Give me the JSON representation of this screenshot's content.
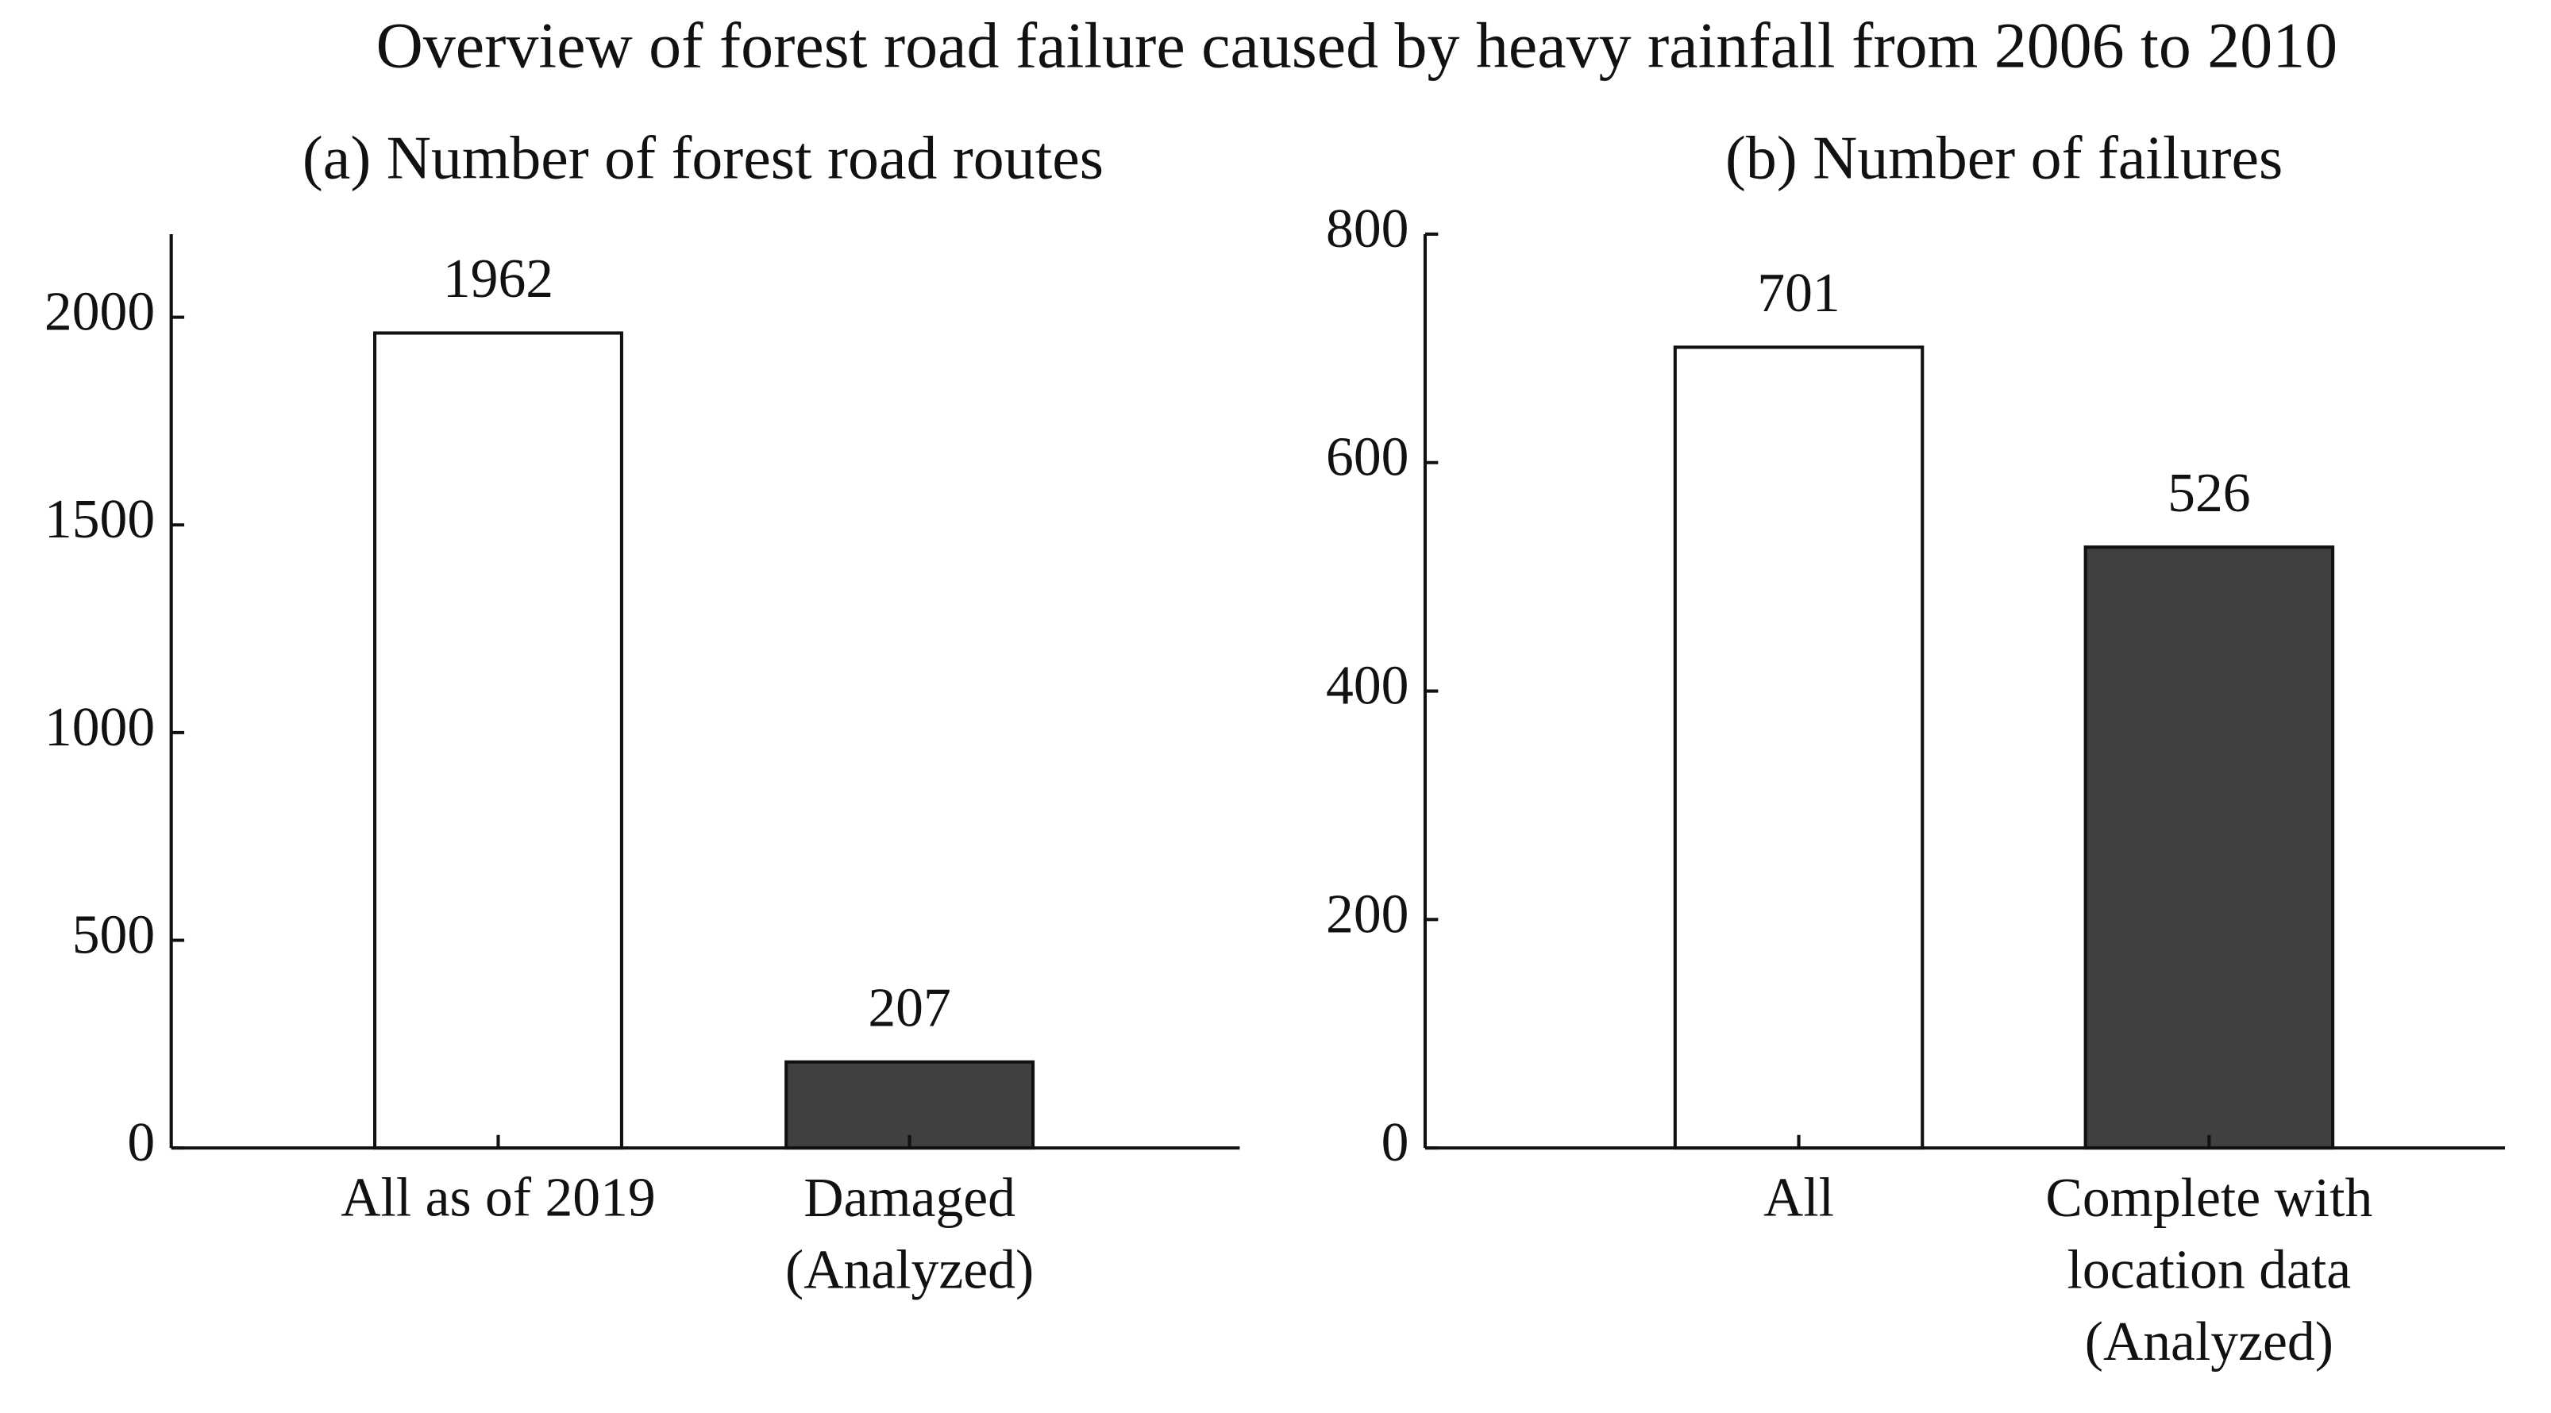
{
  "title": "Overview of forest road failure caused by heavy rainfall from 2006 to 2010",
  "chart_data": [
    {
      "type": "bar",
      "title": "(a) Number of forest road routes",
      "categories": [
        "All as of 2019",
        "Damaged\n(Analyzed)"
      ],
      "values": [
        1962,
        207
      ],
      "colors": [
        "#ffffff",
        "#404040"
      ],
      "ylim": [
        0,
        2200
      ],
      "yticks": [
        0,
        500,
        1000,
        1500,
        2000
      ]
    },
    {
      "type": "bar",
      "title": "(b) Number of failures",
      "categories": [
        "All",
        "Complete with\nlocation data\n(Analyzed)"
      ],
      "values": [
        701,
        526
      ],
      "colors": [
        "#ffffff",
        "#404040"
      ],
      "ylim": [
        0,
        800
      ],
      "yticks": [
        0,
        200,
        400,
        600,
        800
      ]
    }
  ]
}
